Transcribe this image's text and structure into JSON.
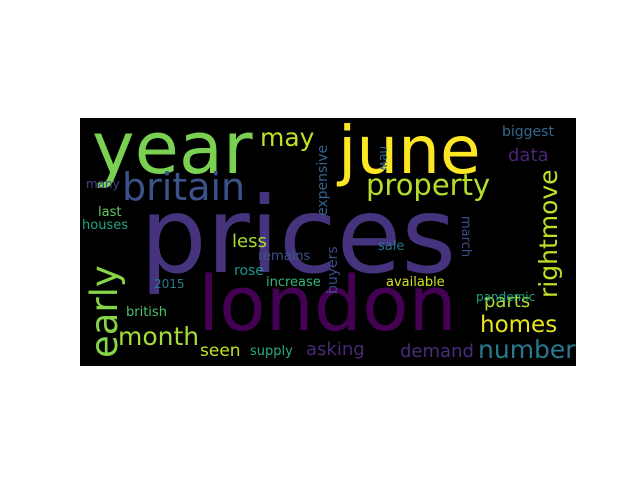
{
  "words": [
    {
      "key": "prices",
      "text": "prices",
      "color": "#46337e"
    },
    {
      "key": "london",
      "text": "london",
      "color": "#440154"
    },
    {
      "key": "year",
      "text": "year",
      "color": "#7ad151"
    },
    {
      "key": "june",
      "text": "june",
      "color": "#fde725"
    },
    {
      "key": "britain",
      "text": "britain",
      "color": "#3b528b"
    },
    {
      "key": "property",
      "text": "property",
      "color": "#b5de2b"
    },
    {
      "key": "early",
      "text": "early",
      "color": "#86d549"
    },
    {
      "key": "may",
      "text": "may",
      "color": "#c2df23"
    },
    {
      "key": "rightmove",
      "text": "rightmove",
      "color": "#bddf26"
    },
    {
      "key": "month",
      "text": "month",
      "color": "#a5db36"
    },
    {
      "key": "homes",
      "text": "homes",
      "color": "#eae51a"
    },
    {
      "key": "number",
      "text": "number",
      "color": "#2a788e"
    },
    {
      "key": "asking",
      "text": "asking",
      "color": "#482878"
    },
    {
      "key": "demand",
      "text": "demand",
      "color": "#472d7b"
    },
    {
      "key": "data",
      "text": "data",
      "color": "#482576"
    },
    {
      "key": "parts",
      "text": "parts",
      "color": "#addc30"
    },
    {
      "key": "less",
      "text": "less",
      "color": "#a8db34"
    },
    {
      "key": "seen",
      "text": "seen",
      "color": "#c8e020"
    },
    {
      "key": "biggest",
      "text": "biggest",
      "color": "#31688e"
    },
    {
      "key": "expensive",
      "text": "expensive",
      "color": "#32648e"
    },
    {
      "key": "new",
      "text": "new",
      "color": "#31688e"
    },
    {
      "key": "rose",
      "text": "rose",
      "color": "#21918c"
    },
    {
      "key": "buyers",
      "text": "buyers",
      "color": "#3e4989"
    },
    {
      "key": "remains",
      "text": "remains",
      "color": "#3b528b"
    },
    {
      "key": "march",
      "text": "march",
      "color": "#3e4a89"
    },
    {
      "key": "sale",
      "text": "sale",
      "color": "#2c728e"
    },
    {
      "key": "increase",
      "text": "increase",
      "color": "#35b779"
    },
    {
      "key": "available",
      "text": "available",
      "color": "#d8e219"
    },
    {
      "key": "pandemic",
      "text": "pandemic",
      "color": "#1fa187"
    },
    {
      "key": "british",
      "text": "british",
      "color": "#4ac16d"
    },
    {
      "key": "supply",
      "text": "supply",
      "color": "#29af7f"
    },
    {
      "key": "many",
      "text": "many",
      "color": "#3f4889"
    },
    {
      "key": "last",
      "text": "last",
      "color": "#5ec962"
    },
    {
      "key": "houses",
      "text": "houses",
      "color": "#20a486"
    },
    {
      "key": "year2015",
      "text": "2015",
      "color": "#2a788e"
    }
  ]
}
